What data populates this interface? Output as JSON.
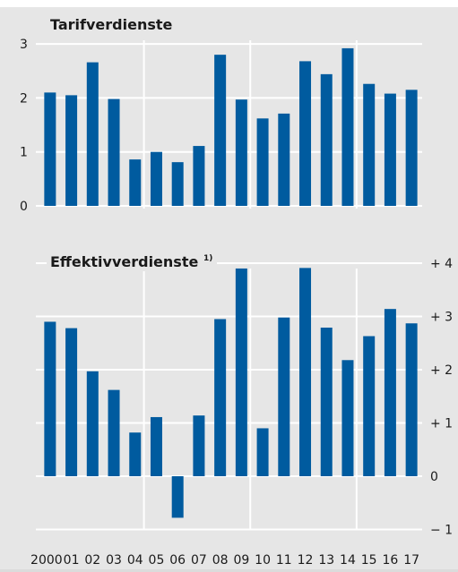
{
  "chart_data": [
    {
      "type": "bar",
      "title": "Tarifverdienste",
      "categories": [
        "2000",
        "01",
        "02",
        "03",
        "04",
        "05",
        "06",
        "07",
        "08",
        "09",
        "10",
        "11",
        "12",
        "13",
        "14",
        "15",
        "16",
        "17"
      ],
      "values": [
        2.1,
        2.05,
        2.66,
        1.98,
        0.86,
        1.0,
        0.81,
        1.11,
        2.8,
        1.97,
        1.62,
        1.71,
        2.68,
        2.44,
        2.92,
        2.26,
        2.08,
        2.15
      ],
      "ylim": [
        0,
        3
      ],
      "yticks": [
        0,
        1,
        2,
        3
      ],
      "ytick_labels": [
        "0",
        "1",
        "2",
        "3"
      ],
      "ytick_side": "left",
      "bar_color": "#005b9f",
      "grid": true
    },
    {
      "type": "bar",
      "title": "Effektivverdienste",
      "title_footnote": "1)",
      "categories": [
        "2000",
        "01",
        "02",
        "03",
        "04",
        "05",
        "06",
        "07",
        "08",
        "09",
        "10",
        "11",
        "12",
        "13",
        "14",
        "15",
        "16",
        "17"
      ],
      "values": [
        2.9,
        2.78,
        1.97,
        1.62,
        0.82,
        1.11,
        -0.78,
        1.14,
        2.95,
        3.9,
        0.9,
        2.98,
        3.91,
        2.79,
        2.18,
        2.63,
        3.14,
        2.87
      ],
      "ylim": [
        -1.2,
        4.2
      ],
      "yticks": [
        -1,
        0,
        1,
        2,
        3,
        4
      ],
      "ytick_labels": [
        "− 1",
        "0",
        "+ 1",
        "+ 2",
        "+ 3",
        "+ 4"
      ],
      "ytick_side": "right",
      "bar_color": "#005b9f",
      "grid": true
    }
  ],
  "x_axis_labels": [
    "2000",
    "01",
    "02",
    "03",
    "04",
    "05",
    "06",
    "07",
    "08",
    "09",
    "10",
    "11",
    "12",
    "13",
    "14",
    "15",
    "16",
    "17"
  ]
}
